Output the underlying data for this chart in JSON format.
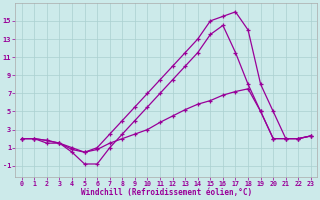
{
  "bg_color": "#cceaea",
  "line_color": "#990099",
  "xlabel": "Windchill (Refroidissement éolien,°C)",
  "xlim": [
    -0.5,
    23.5
  ],
  "ylim": [
    -2.2,
    17
  ],
  "yticks": [
    -1,
    1,
    3,
    5,
    7,
    9,
    11,
    13,
    15
  ],
  "xticks": [
    0,
    1,
    2,
    3,
    4,
    5,
    6,
    7,
    8,
    9,
    10,
    11,
    12,
    13,
    14,
    15,
    16,
    17,
    18,
    19,
    20,
    21,
    22,
    23
  ],
  "line1_x": [
    0,
    1,
    2,
    3,
    4,
    5,
    6,
    7,
    8,
    9,
    10,
    11,
    12,
    13,
    14,
    15,
    16,
    17,
    18,
    19,
    20,
    21,
    22,
    23
  ],
  "line1_y": [
    2,
    2,
    1.5,
    1.5,
    0.8,
    0.5,
    0.8,
    1.5,
    2,
    2.5,
    3,
    3.8,
    4.5,
    5.2,
    5.8,
    6.2,
    6.8,
    7.2,
    7.5,
    5,
    2,
    2,
    2,
    2.3
  ],
  "line2_x": [
    0,
    1,
    2,
    3,
    4,
    5,
    6,
    7,
    8,
    9,
    10,
    11,
    12,
    13,
    14,
    15,
    16,
    17,
    18,
    19,
    20,
    21,
    22,
    23
  ],
  "line2_y": [
    2,
    2,
    1.8,
    1.5,
    1,
    0.5,
    1,
    2.5,
    4,
    5.5,
    7,
    8.5,
    10,
    11.5,
    13,
    15,
    15.5,
    16,
    14,
    8,
    5,
    2,
    2,
    2.3
  ],
  "line3_x": [
    0,
    1,
    2,
    3,
    4,
    5,
    6,
    7,
    8,
    9,
    10,
    11,
    12,
    13,
    14,
    15,
    16,
    17,
    18,
    19,
    20,
    21,
    22,
    23
  ],
  "line3_y": [
    2,
    2,
    1.8,
    1.5,
    0.5,
    -0.8,
    -0.8,
    1,
    2.5,
    4,
    5.5,
    7,
    8.5,
    10,
    11.5,
    13.5,
    14.5,
    11.5,
    8,
    5,
    2,
    2,
    2,
    2.3
  ]
}
